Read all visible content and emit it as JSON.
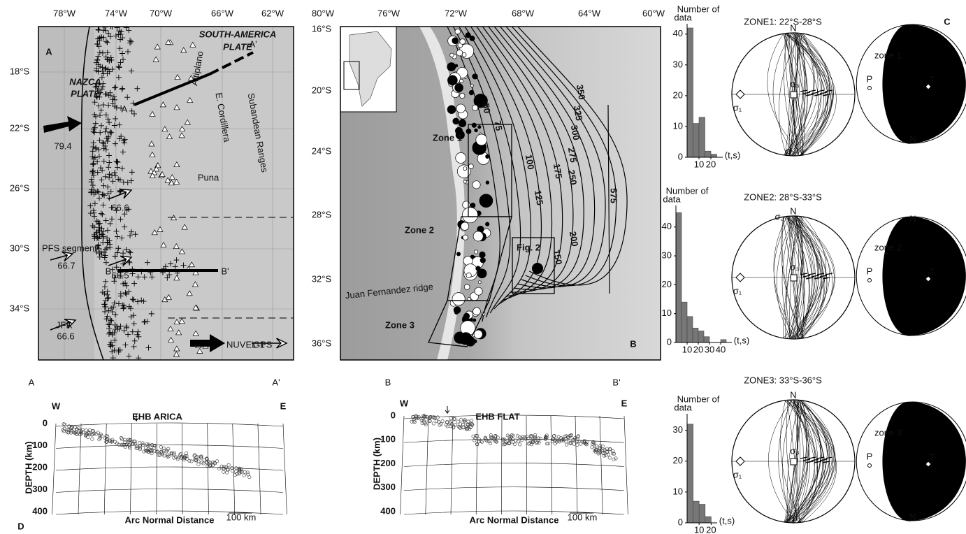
{
  "panel_a": {
    "label": "A",
    "lon_labels": [
      "78°W",
      "74°W",
      "70°W",
      "66°W",
      "62°W"
    ],
    "lat_labels": [
      "18°S",
      "22°S",
      "26°S",
      "30°S",
      "34°S"
    ],
    "south_america_plate": [
      "SOUTH-AMERICA",
      "PLATE"
    ],
    "nazca_plate": [
      "NAZCA",
      "PLATE"
    ],
    "altiplano": "Altiplano",
    "e_cordillera": "E. Cordillera",
    "subandean_ranges": "Subandean Ranges",
    "puna": "Puna",
    "pfs_segment": "PFS segment",
    "jfr": "JFR",
    "nuvel": "NUVEL-1",
    "gps": "GPS",
    "velocities": [
      79.4,
      66.6,
      66.5,
      66.7,
      66.6
    ],
    "profile_a": [
      "A",
      "A'"
    ],
    "profile_b": [
      "B",
      "B'"
    ]
  },
  "panel_b": {
    "label": "B",
    "lon_labels": [
      "80°W",
      "76°W",
      "72°W",
      "68°W",
      "64°W",
      "60°W"
    ],
    "lat_labels": [
      "16°S",
      "20°S",
      "24°S",
      "28°S",
      "32°S",
      "36°S"
    ],
    "zones": [
      "Zone 1",
      "Zone 2",
      "Zone 3"
    ],
    "fig2": "Fig. 2",
    "ridge": "Juan Fernandez ridge",
    "contours": [
      50,
      75,
      100,
      125,
      150,
      175,
      200,
      250,
      275,
      300,
      325,
      350,
      575
    ]
  },
  "panel_c": {
    "label": "C",
    "zones": [
      {
        "title": "ZONE1: 22°S-28°S",
        "hist": {
          "ylabel": [
            "Number of",
            "data"
          ],
          "xlabel": "(t,s)",
          "bins": [
            0,
            5,
            10,
            15,
            20,
            25
          ],
          "values": [
            42,
            11,
            13,
            2,
            1
          ],
          "xlim": [
            0,
            30
          ],
          "ylim": [
            0,
            42
          ],
          "xticks": [
            10,
            20
          ],
          "yticks": [
            0,
            10,
            20,
            30,
            40
          ]
        },
        "stereonet": {
          "north": "N",
          "sigma1": "σ₁",
          "sigma2": "σ₂",
          "sigma3": "σ₃"
        },
        "ball": {
          "label": "zone 1",
          "p": "P",
          "t": "T",
          "n": "N"
        }
      },
      {
        "title": "ZONE2: 28°S-33°S",
        "hist": {
          "ylabel": [
            "Number of",
            "data"
          ],
          "xlabel": "(t,s)",
          "bins": [
            0,
            5,
            10,
            15,
            20,
            25,
            30,
            35,
            40,
            45
          ],
          "values": [
            45,
            14,
            9,
            5,
            4,
            2,
            0,
            0,
            1
          ],
          "xlim": [
            0,
            50
          ],
          "ylim": [
            0,
            46
          ],
          "xticks": [
            10,
            20,
            30,
            40
          ],
          "yticks": [
            0,
            10,
            20,
            30,
            40
          ]
        },
        "stereonet": {
          "north": "N",
          "sigma1": "σ₁",
          "sigma2": "σ₂",
          "sigma3": "σ₃"
        },
        "ball": {
          "label": "zone 2",
          "p": "P",
          "t": "T",
          "n": "N"
        }
      },
      {
        "title": "ZONE3: 33°S-36°S",
        "hist": {
          "ylabel": [
            "Number of",
            "data"
          ],
          "xlabel": "(t,s)",
          "bins": [
            0,
            5,
            10,
            15,
            20
          ],
          "values": [
            32,
            7,
            6,
            2
          ],
          "xlim": [
            0,
            25
          ],
          "ylim": [
            0,
            34
          ],
          "xticks": [
            10,
            20
          ],
          "yticks": [
            0,
            10,
            20,
            30
          ]
        },
        "stereonet": {
          "north": "N",
          "sigma1": "σ₁",
          "sigma2": "σ₂",
          "sigma3": "σ₃"
        },
        "ball": {
          "label": "zone 3",
          "p": "P",
          "t": "T",
          "n": "N"
        }
      }
    ]
  },
  "panel_d": {
    "label": "D",
    "sections": [
      {
        "ends": [
          "A",
          "A'"
        ],
        "sides": [
          "W",
          "E"
        ],
        "title": "EHB ARICA",
        "ylabel": "DEPTH (km)",
        "xlabel": "Arc Normal Distance",
        "scale": "100 km",
        "ylim": [
          0,
          400
        ],
        "yticks": [
          0,
          100,
          200,
          300,
          400
        ]
      },
      {
        "ends": [
          "B",
          "B'"
        ],
        "sides": [
          "W",
          "E"
        ],
        "title": "EHB FLAT",
        "ylabel": "DEPTH (km)",
        "xlabel": "Arc Normal Distance",
        "scale": "100 km",
        "ylim": [
          0,
          400
        ],
        "yticks": [
          0,
          100,
          200,
          300,
          400
        ]
      }
    ]
  }
}
